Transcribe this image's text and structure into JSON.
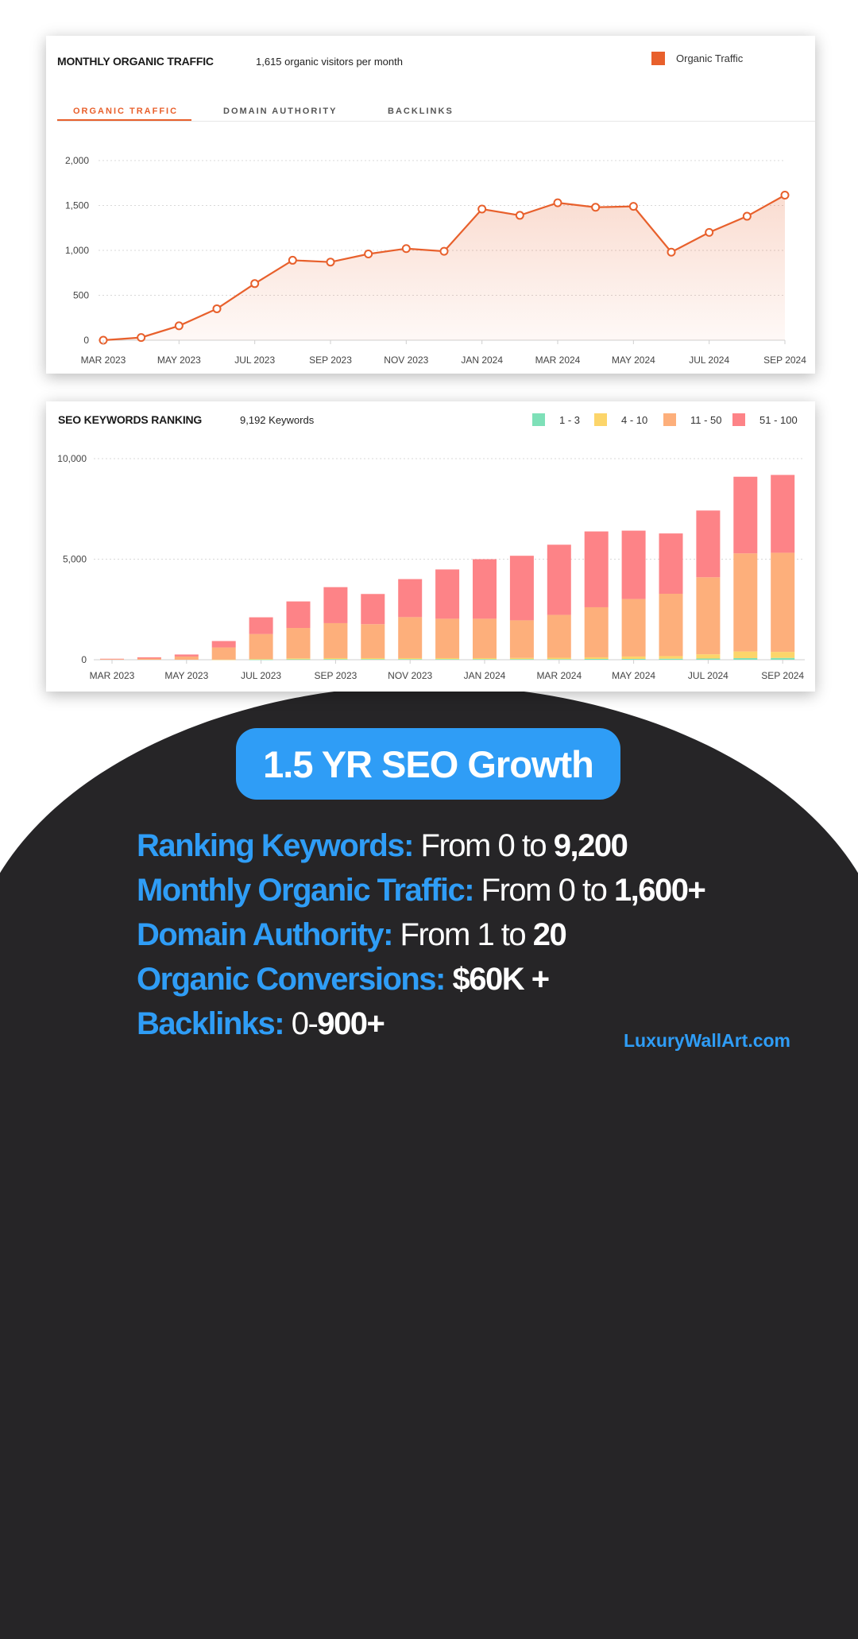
{
  "traffic_card": {
    "title": "MONTHLY ORGANIC TRAFFIC",
    "subtitle": "1,615 organic visitors per month",
    "legend_label": "Organic Traffic",
    "tabs": [
      "ORGANIC TRAFFIC",
      "DOMAIN AUTHORITY",
      "BACKLINKS"
    ],
    "active_tab": "ORGANIC TRAFFIC"
  },
  "keywords_card": {
    "title": "SEO KEYWORDS RANKING",
    "subtitle": "9,192 Keywords",
    "legend": [
      "1 - 3",
      "4 - 10",
      "11 - 50",
      "51 - 100"
    ]
  },
  "colors": {
    "accent": "#e8602c",
    "pos_1_3": "#7ee0b8",
    "pos_4_10": "#fcd56a",
    "pos_11_50": "#fdaf7b",
    "pos_51_100": "#fd8387",
    "highlight_blue": "#2f9df6",
    "dark_background": "#262527"
  },
  "chart_data": [
    {
      "type": "line",
      "title": "MONTHLY ORGANIC TRAFFIC",
      "x": [
        "MAR 2023",
        "APR 2023",
        "MAY 2023",
        "JUN 2023",
        "JUL 2023",
        "AUG 2023",
        "SEP 2023",
        "OCT 2023",
        "NOV 2023",
        "DEC 2023",
        "JAN 2024",
        "FEB 2024",
        "MAR 2024",
        "APR 2024",
        "MAY 2024",
        "JUN 2024",
        "JUL 2024",
        "AUG 2024",
        "SEP 2024"
      ],
      "xticks": [
        "MAR 2023",
        "MAY 2023",
        "JUL 2023",
        "SEP 2023",
        "NOV 2023",
        "JAN 2024",
        "MAR 2024",
        "MAY 2024",
        "JUL 2024",
        "SEP 2024"
      ],
      "series": [
        {
          "name": "Organic Traffic",
          "values": [
            0,
            30,
            160,
            350,
            630,
            890,
            870,
            960,
            1020,
            990,
            1460,
            1390,
            1530,
            1480,
            1490,
            980,
            1200,
            1380,
            1615
          ]
        }
      ],
      "ylim": [
        0,
        2000
      ],
      "yticks": [
        "0",
        "500",
        "1,000",
        "1,500",
        "2,000"
      ],
      "grid": true,
      "legend_position": "top-right"
    },
    {
      "type": "bar",
      "stacked": true,
      "title": "SEO KEYWORDS RANKING",
      "categories": [
        "MAR 2023",
        "APR 2023",
        "MAY 2023",
        "JUN 2023",
        "JUL 2023",
        "AUG 2023",
        "SEP 2023",
        "OCT 2023",
        "NOV 2023",
        "DEC 2023",
        "JAN 2024",
        "FEB 2024",
        "MAR 2024",
        "APR 2024",
        "MAY 2024",
        "JUN 2024",
        "JUL 2024",
        "AUG 2024",
        "SEP 2024"
      ],
      "xticks": [
        "MAR 2023",
        "MAY 2023",
        "JUL 2023",
        "SEP 2023",
        "NOV 2023",
        "JAN 2024",
        "MAR 2024",
        "MAY 2024",
        "JUL 2024",
        "SEP 2024"
      ],
      "series": [
        {
          "name": "1 - 3",
          "values": [
            0,
            0,
            0,
            0,
            10,
            20,
            30,
            30,
            30,
            30,
            30,
            30,
            30,
            40,
            40,
            50,
            60,
            80,
            90
          ]
        },
        {
          "name": "4 - 10",
          "values": [
            0,
            0,
            0,
            10,
            30,
            50,
            50,
            50,
            50,
            50,
            50,
            60,
            70,
            80,
            120,
            130,
            210,
            330,
            300
          ]
        },
        {
          "name": "11 - 50",
          "values": [
            30,
            60,
            160,
            600,
            1240,
            1510,
            1740,
            1690,
            2040,
            1960,
            1960,
            1870,
            2130,
            2490,
            2860,
            3100,
            3830,
            4880,
            4930
          ]
        },
        {
          "name": "51 - 100",
          "values": [
            20,
            60,
            100,
            320,
            830,
            1320,
            1790,
            1500,
            1890,
            2450,
            2960,
            3210,
            3490,
            3770,
            3400,
            3000,
            3320,
            3810,
            3870
          ]
        }
      ],
      "ylim": [
        0,
        10000
      ],
      "yticks": [
        "0",
        "5,000",
        "10,000"
      ],
      "grid": true,
      "legend_position": "top-right"
    }
  ],
  "headline": "1.5 YR SEO Growth",
  "stats": [
    {
      "label": "Ranking Keywords:",
      "plain": " From 0 to ",
      "bold": "9,200"
    },
    {
      "label": "Monthly Organic Traffic:",
      "plain": " From 0 to ",
      "bold": "1,600+"
    },
    {
      "label": "Domain Authority:",
      "plain": " From 1 to ",
      "bold": "20"
    },
    {
      "label": "Organic Conversions:",
      "plain": " ",
      "bold": "$60K +"
    },
    {
      "label": "Backlinks:",
      "plain": " 0-",
      "bold": "900+"
    }
  ],
  "site": "LuxuryWallArt.com"
}
